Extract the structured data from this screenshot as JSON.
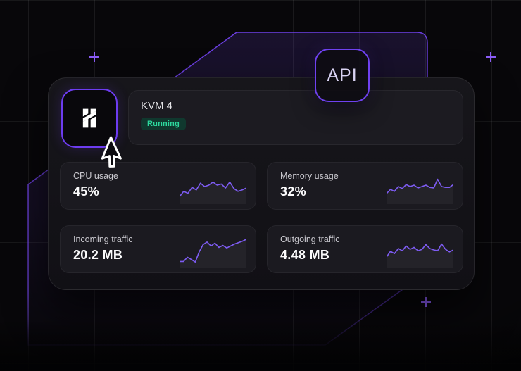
{
  "colors": {
    "accent_purple": "#6f41f0",
    "spark_line": "#7e5cf3",
    "plus_marker": "#8b5cf6",
    "status_bg": "#10382e",
    "status_text": "#2dd99e",
    "card_bg": "#16151a",
    "tile_bg": "#1b1a20",
    "page_bg": "#08070a"
  },
  "api_badge": {
    "label": "API"
  },
  "server": {
    "name": "KVM 4",
    "status": "Running",
    "logo": "hostinger-h-mark"
  },
  "metrics": {
    "cards": [
      {
        "id": "cpu",
        "label": "CPU usage",
        "value": "45%"
      },
      {
        "id": "memory",
        "label": "Memory usage",
        "value": "32%"
      },
      {
        "id": "incoming",
        "label": "Incoming traffic",
        "value": "20.2 MB"
      },
      {
        "id": "outgoing",
        "label": "Outgoing traffic",
        "value": "4.48 MB"
      }
    ]
  },
  "chart_data": [
    {
      "type": "area",
      "title": "CPU usage sparkline",
      "current_value_label": "45%",
      "axes": "none (unlabeled sparkline, relative % of plot height)",
      "values_pct": [
        19,
        38,
        31,
        52,
        43,
        67,
        55,
        60,
        71,
        60,
        64,
        50,
        71,
        48,
        38,
        43,
        50
      ]
    },
    {
      "type": "area",
      "title": "Memory usage sparkline",
      "current_value_label": "32%",
      "axes": "none (unlabeled sparkline, relative % of plot height)",
      "values_pct": [
        30,
        45,
        38,
        55,
        48,
        62,
        55,
        60,
        50,
        55,
        60,
        52,
        50,
        81,
        55,
        52,
        52,
        62
      ]
    },
    {
      "type": "area",
      "title": "Incoming traffic sparkline",
      "current_value_label": "20.2 MB",
      "axes": "none (unlabeled sparkline, relative % of plot height)",
      "values_pct": [
        14,
        14,
        29,
        21,
        12,
        48,
        74,
        83,
        69,
        79,
        64,
        71,
        62,
        69,
        76,
        81,
        86,
        93
      ]
    },
    {
      "type": "area",
      "title": "Outgoing traffic sparkline",
      "current_value_label": "4.48 MB",
      "axes": "none (unlabeled sparkline, relative % of plot height)",
      "values_pct": [
        30,
        50,
        42,
        60,
        52,
        69,
        57,
        64,
        52,
        57,
        74,
        60,
        55,
        52,
        76,
        57,
        48,
        55
      ]
    }
  ]
}
